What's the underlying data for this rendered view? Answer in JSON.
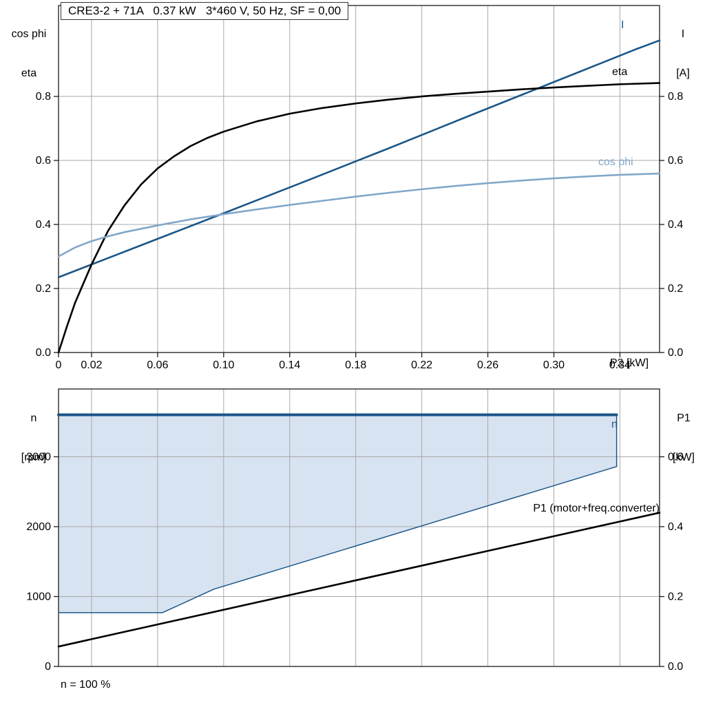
{
  "colors": {
    "dark_blue": "#1a5688",
    "light_blue": "#82a7c9",
    "fill_blue": "#d7e3f0",
    "black": "#000000",
    "grid": "#a8a8a8",
    "frame": "#1a1a1a"
  },
  "chart_data": [
    {
      "id": "motor-performance-curves",
      "type": "line",
      "title": "CRE3-2 + 71A   0.37 kW   3*460 V, 50 Hz, SF = 0,00",
      "xlabel": "P2 [kW]",
      "left_label_lines": [
        "cos phi",
        "eta"
      ],
      "right_label_lines": [
        "I",
        "[A]"
      ],
      "xlim": [
        0,
        0.364
      ],
      "ylim": [
        0,
        1.084
      ],
      "grid": true,
      "legend_position": "inline-labels",
      "x_ticks": [
        0,
        0.02,
        0.06,
        0.1,
        0.14,
        0.18,
        0.22,
        0.26,
        0.3,
        0.34
      ],
      "x_tick_labels": [
        "0",
        "0.02",
        "0.06",
        "0.10",
        "0.14",
        "0.18",
        "0.22",
        "0.26",
        "0.30",
        "0.34"
      ],
      "y_ticks": [
        0,
        0.2,
        0.4,
        0.6,
        0.8
      ],
      "y_tick_labels": [
        "0.0",
        "0.2",
        "0.4",
        "0.6",
        "0.8"
      ],
      "series": [
        {
          "name": "I",
          "color_key": "dark_blue",
          "width": 2.6,
          "points": [
            [
              0,
              0.235
            ],
            [
              0.05,
              0.335
            ],
            [
              0.1,
              0.435
            ],
            [
              0.15,
              0.536
            ],
            [
              0.2,
              0.638
            ],
            [
              0.25,
              0.742
            ],
            [
              0.3,
              0.845
            ],
            [
              0.35,
              0.948
            ],
            [
              0.364,
              0.975
            ]
          ]
        },
        {
          "name": "eta",
          "color_key": "black",
          "width": 2.6,
          "points": [
            [
              0,
              0
            ],
            [
              0.005,
              0.08
            ],
            [
              0.01,
              0.155
            ],
            [
              0.02,
              0.275
            ],
            [
              0.03,
              0.38
            ],
            [
              0.04,
              0.46
            ],
            [
              0.05,
              0.525
            ],
            [
              0.06,
              0.575
            ],
            [
              0.07,
              0.613
            ],
            [
              0.08,
              0.645
            ],
            [
              0.09,
              0.67
            ],
            [
              0.1,
              0.69
            ],
            [
              0.12,
              0.722
            ],
            [
              0.14,
              0.746
            ],
            [
              0.16,
              0.764
            ],
            [
              0.18,
              0.778
            ],
            [
              0.2,
              0.79
            ],
            [
              0.22,
              0.8
            ],
            [
              0.24,
              0.808
            ],
            [
              0.26,
              0.815
            ],
            [
              0.28,
              0.822
            ],
            [
              0.3,
              0.828
            ],
            [
              0.32,
              0.833
            ],
            [
              0.34,
              0.838
            ],
            [
              0.364,
              0.842
            ]
          ]
        },
        {
          "name": "cos phi",
          "color_key": "light_blue",
          "width": 2.6,
          "points": [
            [
              0,
              0.3
            ],
            [
              0.01,
              0.328
            ],
            [
              0.02,
              0.348
            ],
            [
              0.03,
              0.363
            ],
            [
              0.04,
              0.376
            ],
            [
              0.06,
              0.397
            ],
            [
              0.08,
              0.416
            ],
            [
              0.1,
              0.432
            ],
            [
              0.12,
              0.447
            ],
            [
              0.14,
              0.461
            ],
            [
              0.16,
              0.474
            ],
            [
              0.18,
              0.487
            ],
            [
              0.2,
              0.499
            ],
            [
              0.22,
              0.51
            ],
            [
              0.24,
              0.52
            ],
            [
              0.26,
              0.529
            ],
            [
              0.28,
              0.537
            ],
            [
              0.3,
              0.544
            ],
            [
              0.32,
              0.55
            ],
            [
              0.34,
              0.555
            ],
            [
              0.364,
              0.559
            ]
          ]
        }
      ]
    },
    {
      "id": "speed-range-and-p1",
      "type": "line+area",
      "left_label_lines": [
        "n",
        "[rpm]"
      ],
      "right_label_lines": [
        "P1",
        "[kW]"
      ],
      "footnote": "n = 100 %",
      "xlim": [
        0,
        0.364
      ],
      "ylim_left": [
        0,
        3970
      ],
      "ylim_right": [
        0,
        0.794
      ],
      "grid": true,
      "x_ticks": [
        0,
        0.02,
        0.06,
        0.1,
        0.14,
        0.18,
        0.22,
        0.26,
        0.3,
        0.34
      ],
      "y_ticks_left": [
        0,
        1000,
        2000,
        3000
      ],
      "y_tick_labels_left": [
        "0",
        "1000",
        "2000",
        "3000"
      ],
      "y_ticks_right": [
        0,
        0.2,
        0.4,
        0.6
      ],
      "y_tick_labels_right": [
        "0.0",
        "0.2",
        "0.4",
        "0.6"
      ],
      "speed_envelope": {
        "name": "n",
        "n_max_rpm": 3600,
        "x_end": 0.338,
        "n_at_x_end": 2860,
        "lower_boundary": [
          [
            0,
            770
          ],
          [
            0.063,
            770
          ],
          [
            0.094,
            1105
          ],
          [
            0.338,
            2860
          ]
        ]
      },
      "series": [
        {
          "name": "P1 (motor+freq.converter)",
          "axis": "right",
          "color_key": "black",
          "width": 2.6,
          "points": [
            [
              0,
              0.057
            ],
            [
              0.364,
              0.44
            ]
          ]
        }
      ]
    }
  ]
}
